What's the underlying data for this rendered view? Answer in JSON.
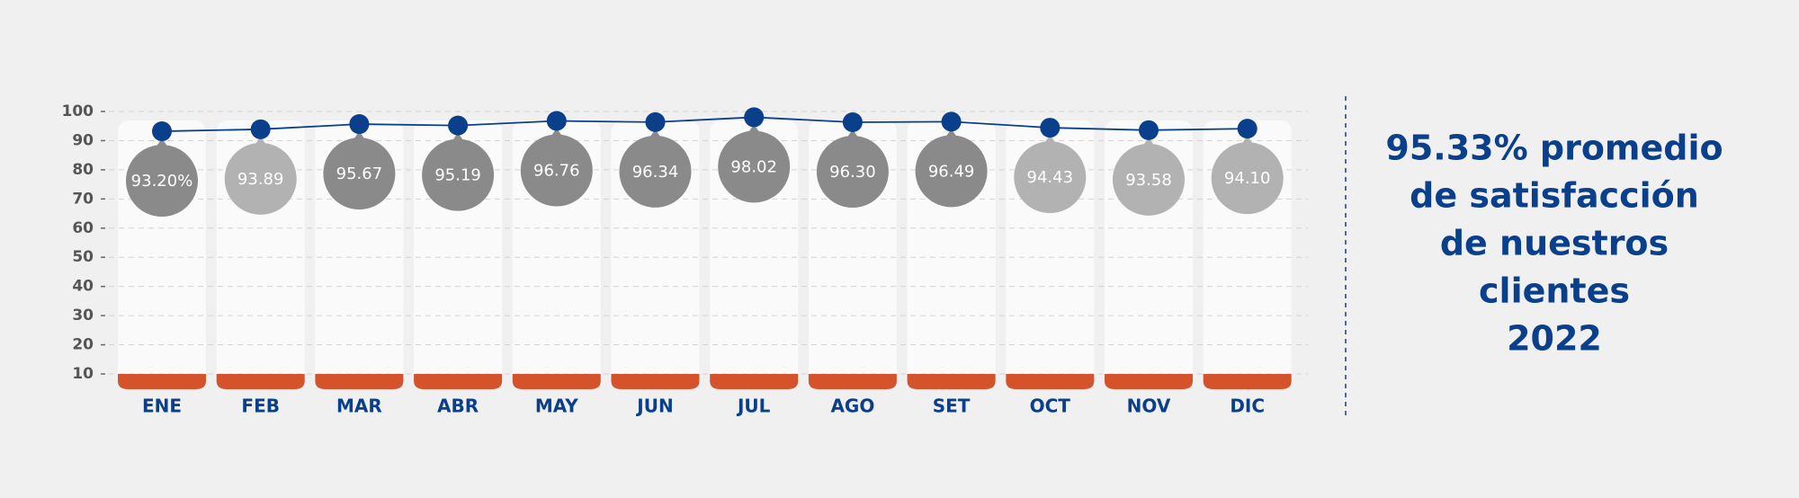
{
  "chart_data": {
    "type": "line",
    "categories": [
      "ENE",
      "FEB",
      "MAR",
      "ABR",
      "MAY",
      "JUN",
      "JUL",
      "AGO",
      "SET",
      "OCT",
      "NOV",
      "DIC"
    ],
    "series": [
      {
        "color": "#0a3f8c",
        "values": [
          93.2,
          93.89,
          95.67,
          95.19,
          96.76,
          96.34,
          98.02,
          96.3,
          96.49,
          94.43,
          93.58,
          94.1
        ],
        "value_labels": [
          "93.20%",
          "93.89",
          "95.67",
          "95.19",
          "96.76",
          "96.34",
          "98.02",
          "96.30",
          "96.49",
          "94.43",
          "93.58",
          "94.10"
        ],
        "label_colors": [
          "#8a8a8a",
          "#b2b2b2",
          "#8a8a8a",
          "#8a8a8a",
          "#8a8a8a",
          "#8a8a8a",
          "#8a8a8a",
          "#8a8a8a",
          "#8a8a8a",
          "#b2b2b2",
          "#b2b2b2",
          "#b2b2b2"
        ]
      }
    ],
    "ylim": [
      10,
      100
    ],
    "yticks": [
      10,
      20,
      30,
      40,
      50,
      60,
      70,
      80,
      90,
      100
    ],
    "grid": true,
    "base_color": "#d4532a",
    "annotation": [
      "95.33% promedio",
      "de satisfacción",
      "de nuestros",
      "clientes",
      "2022"
    ]
  }
}
